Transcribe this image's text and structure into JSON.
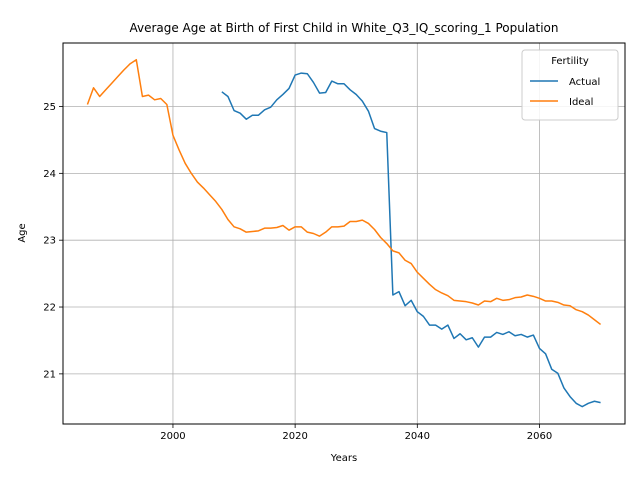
{
  "chart_data": {
    "type": "line",
    "title": "Average Age at Birth of First Child in White_Q3_IQ_scoring_1 Population",
    "xlabel": "Years",
    "ylabel": "Age",
    "xlim": [
      1982,
      2074
    ],
    "ylim": [
      20.25,
      25.95
    ],
    "xticks": [
      2000,
      2020,
      2040,
      2060
    ],
    "yticks": [
      21,
      22,
      23,
      24,
      25
    ],
    "grid": true,
    "legend": {
      "title": "Fertility",
      "placement": "top-right"
    },
    "series": [
      {
        "name": "Actual",
        "color": "#1f77b4",
        "x": [
          2008,
          2009,
          2010,
          2011,
          2012,
          2013,
          2014,
          2015,
          2016,
          2017,
          2018,
          2019,
          2020,
          2021,
          2022,
          2023,
          2024,
          2025,
          2026,
          2027,
          2028,
          2029,
          2030,
          2031,
          2032,
          2033,
          2034,
          2035,
          2036,
          2037,
          2038,
          2039,
          2040,
          2041,
          2042,
          2043,
          2044,
          2045,
          2046,
          2047,
          2048,
          2049,
          2050,
          2051,
          2052,
          2053,
          2054,
          2055,
          2056,
          2057,
          2058,
          2059,
          2060,
          2061,
          2062,
          2063,
          2064,
          2065,
          2066,
          2067,
          2068,
          2069,
          2070
        ],
        "values": [
          25.22,
          25.15,
          24.94,
          24.9,
          24.81,
          24.87,
          24.87,
          24.95,
          24.99,
          25.1,
          25.18,
          25.27,
          25.47,
          25.5,
          25.49,
          25.36,
          25.2,
          25.21,
          25.38,
          25.34,
          25.34,
          25.25,
          25.18,
          25.08,
          24.93,
          24.67,
          24.63,
          24.61,
          22.18,
          22.23,
          22.02,
          22.1,
          21.93,
          21.86,
          21.73,
          21.73,
          21.67,
          21.73,
          21.53,
          21.6,
          21.51,
          21.54,
          21.4,
          21.55,
          21.55,
          21.62,
          21.59,
          21.63,
          21.57,
          21.59,
          21.55,
          21.58,
          21.38,
          21.3,
          21.07,
          21.01,
          20.79,
          20.66,
          20.56,
          20.51,
          20.56,
          20.59,
          20.57
        ]
      },
      {
        "name": "Ideal",
        "color": "#ff7f0e",
        "x": [
          1986,
          1987,
          1988,
          1989,
          1990,
          1991,
          1992,
          1993,
          1994,
          1995,
          1996,
          1997,
          1998,
          1999,
          2000,
          2001,
          2002,
          2003,
          2004,
          2005,
          2006,
          2007,
          2008,
          2009,
          2010,
          2011,
          2012,
          2013,
          2014,
          2015,
          2016,
          2017,
          2018,
          2019,
          2020,
          2021,
          2022,
          2023,
          2024,
          2025,
          2026,
          2027,
          2028,
          2029,
          2030,
          2031,
          2032,
          2033,
          2034,
          2035,
          2036,
          2037,
          2038,
          2039,
          2040,
          2041,
          2042,
          2043,
          2044,
          2045,
          2046,
          2047,
          2048,
          2049,
          2050,
          2051,
          2052,
          2053,
          2054,
          2055,
          2056,
          2057,
          2058,
          2059,
          2060,
          2061,
          2062,
          2063,
          2064,
          2065,
          2066,
          2067,
          2068,
          2069,
          2070
        ],
        "values": [
          25.03,
          25.28,
          25.15,
          25.25,
          25.35,
          25.45,
          25.55,
          25.64,
          25.7,
          25.15,
          25.17,
          25.1,
          25.12,
          25.03,
          24.57,
          24.35,
          24.15,
          24.0,
          23.87,
          23.78,
          23.68,
          23.58,
          23.46,
          23.31,
          23.2,
          23.17,
          23.12,
          23.13,
          23.14,
          23.18,
          23.18,
          23.19,
          23.22,
          23.15,
          23.2,
          23.2,
          23.12,
          23.1,
          23.06,
          23.12,
          23.2,
          23.2,
          23.21,
          23.28,
          23.28,
          23.3,
          23.25,
          23.16,
          23.04,
          22.95,
          22.84,
          22.81,
          22.7,
          22.65,
          22.52,
          22.43,
          22.34,
          22.26,
          22.21,
          22.17,
          22.1,
          22.09,
          22.08,
          22.06,
          22.03,
          22.09,
          22.08,
          22.13,
          22.1,
          22.11,
          22.14,
          22.15,
          22.18,
          22.16,
          22.13,
          22.09,
          22.09,
          22.07,
          22.03,
          22.02,
          21.96,
          21.93,
          21.88,
          21.81,
          21.74
        ]
      }
    ]
  }
}
